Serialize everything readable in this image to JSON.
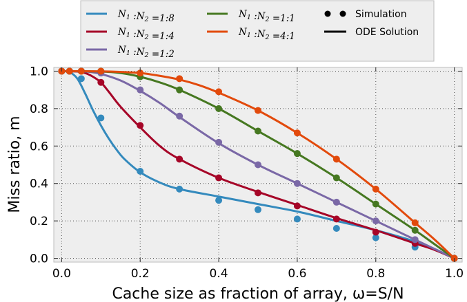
{
  "chart_data": {
    "type": "line",
    "xlabel": "Cache size as fraction of array, ω=S/N",
    "ylabel": "Miss ratio, m",
    "xlim": [
      -0.02,
      1.02
    ],
    "ylim": [
      -0.02,
      1.02
    ],
    "x_ticks": [
      0.0,
      0.2,
      0.4,
      0.6,
      0.8,
      1.0
    ],
    "y_ticks": [
      0.0,
      0.2,
      0.4,
      0.6,
      0.8,
      1.0
    ],
    "x_tick_labels": [
      "0.0",
      "0.2",
      "0.4",
      "0.6",
      "0.8",
      "1.0"
    ],
    "y_tick_labels": [
      "0.0",
      "0.2",
      "0.4",
      "0.6",
      "0.8",
      "1.0"
    ],
    "grid": true,
    "legend_position": "top",
    "legend_markers": [
      {
        "label": "Simulation",
        "style": "dots"
      },
      {
        "label": "ODE Solution",
        "style": "line"
      }
    ],
    "series": [
      {
        "name": "N1 :N2 =1:8",
        "color": "#348ABD",
        "x": [
          0.0,
          0.02,
          0.05,
          0.1,
          0.2,
          0.3,
          0.4,
          0.5,
          0.6,
          0.7,
          0.8,
          0.9,
          1.0
        ],
        "values": [
          1.0,
          1.0,
          0.96,
          0.75,
          0.465,
          0.37,
          0.31,
          0.26,
          0.21,
          0.16,
          0.11,
          0.06,
          0.0
        ],
        "curve_x": [
          0.0,
          0.02,
          0.04,
          0.06,
          0.08,
          0.1,
          0.12,
          0.14,
          0.16,
          0.2,
          0.25,
          0.3,
          0.4,
          0.5,
          0.6,
          0.7,
          0.8,
          0.9,
          0.95,
          1.0
        ],
        "curve_y": [
          1.0,
          0.995,
          0.96,
          0.88,
          0.79,
          0.71,
          0.64,
          0.58,
          0.53,
          0.46,
          0.405,
          0.37,
          0.33,
          0.29,
          0.25,
          0.2,
          0.15,
          0.09,
          0.05,
          0.0
        ]
      },
      {
        "name": "N1 :N2 =1:4",
        "color": "#A60628",
        "x": [
          0.0,
          0.02,
          0.05,
          0.1,
          0.2,
          0.3,
          0.4,
          0.5,
          0.6,
          0.7,
          0.8,
          0.9,
          1.0
        ],
        "values": [
          1.0,
          1.0,
          1.0,
          0.94,
          0.71,
          0.53,
          0.43,
          0.35,
          0.28,
          0.21,
          0.14,
          0.08,
          0.0
        ],
        "curve_x": [
          0.0,
          0.04,
          0.06,
          0.08,
          0.1,
          0.12,
          0.15,
          0.2,
          0.25,
          0.3,
          0.4,
          0.5,
          0.6,
          0.7,
          0.8,
          0.9,
          0.95,
          1.0
        ],
        "curve_y": [
          1.0,
          0.998,
          0.99,
          0.97,
          0.94,
          0.89,
          0.81,
          0.7,
          0.6,
          0.53,
          0.43,
          0.355,
          0.285,
          0.215,
          0.15,
          0.08,
          0.045,
          0.0
        ]
      },
      {
        "name": "N1 :N2 =1:2",
        "color": "#7A68A6",
        "x": [
          0.0,
          0.02,
          0.05,
          0.1,
          0.2,
          0.3,
          0.4,
          0.5,
          0.6,
          0.7,
          0.8,
          0.9,
          1.0
        ],
        "values": [
          1.0,
          1.0,
          1.0,
          0.99,
          0.9,
          0.76,
          0.62,
          0.5,
          0.4,
          0.3,
          0.2,
          0.1,
          0.0
        ],
        "curve_x": [
          0.0,
          0.06,
          0.1,
          0.15,
          0.2,
          0.25,
          0.3,
          0.4,
          0.5,
          0.6,
          0.7,
          0.8,
          0.9,
          0.95,
          1.0
        ],
        "curve_y": [
          1.0,
          0.998,
          0.985,
          0.95,
          0.895,
          0.83,
          0.755,
          0.615,
          0.5,
          0.4,
          0.3,
          0.2,
          0.1,
          0.05,
          0.0
        ]
      },
      {
        "name": "N1 :N2 =1:1",
        "color": "#467821",
        "x": [
          0.0,
          0.02,
          0.05,
          0.1,
          0.2,
          0.3,
          0.4,
          0.5,
          0.6,
          0.7,
          0.8,
          0.9,
          1.0
        ],
        "values": [
          1.0,
          1.0,
          1.0,
          1.0,
          0.97,
          0.9,
          0.8,
          0.68,
          0.56,
          0.43,
          0.29,
          0.15,
          0.0
        ],
        "curve_x": [
          0.0,
          0.1,
          0.15,
          0.2,
          0.25,
          0.3,
          0.4,
          0.5,
          0.6,
          0.7,
          0.8,
          0.9,
          0.95,
          1.0
        ],
        "curve_y": [
          1.0,
          0.998,
          0.99,
          0.97,
          0.94,
          0.9,
          0.8,
          0.68,
          0.56,
          0.43,
          0.29,
          0.15,
          0.075,
          0.0
        ]
      },
      {
        "name": "N1 :N2 =4:1",
        "color": "#E24A0C",
        "x": [
          0.0,
          0.02,
          0.05,
          0.1,
          0.2,
          0.3,
          0.4,
          0.5,
          0.6,
          0.7,
          0.8,
          0.9,
          1.0
        ],
        "values": [
          1.0,
          1.0,
          1.0,
          1.0,
          0.99,
          0.96,
          0.89,
          0.79,
          0.67,
          0.53,
          0.37,
          0.19,
          0.0
        ],
        "curve_x": [
          0.0,
          0.1,
          0.15,
          0.2,
          0.25,
          0.3,
          0.35,
          0.4,
          0.5,
          0.6,
          0.7,
          0.8,
          0.9,
          0.95,
          1.0
        ],
        "curve_y": [
          1.0,
          0.999,
          0.996,
          0.99,
          0.975,
          0.955,
          0.925,
          0.885,
          0.79,
          0.67,
          0.53,
          0.37,
          0.19,
          0.1,
          0.0
        ]
      }
    ]
  },
  "legend": {
    "series_labels": [
      {
        "n1": "N",
        "s1": "1",
        "n2": "N",
        "s2": "2",
        "ratio": "1:8"
      },
      {
        "n1": "N",
        "s1": "1",
        "n2": "N",
        "s2": "2",
        "ratio": "1:4"
      },
      {
        "n1": "N",
        "s1": "1",
        "n2": "N",
        "s2": "2",
        "ratio": "1:2"
      },
      {
        "n1": "N",
        "s1": "1",
        "n2": "N",
        "s2": "2",
        "ratio": "1:1"
      },
      {
        "n1": "N",
        "s1": "1",
        "n2": "N",
        "s2": "2",
        "ratio": "4:1"
      }
    ],
    "simulation_label": "Simulation",
    "ode_label": "ODE Solution"
  }
}
